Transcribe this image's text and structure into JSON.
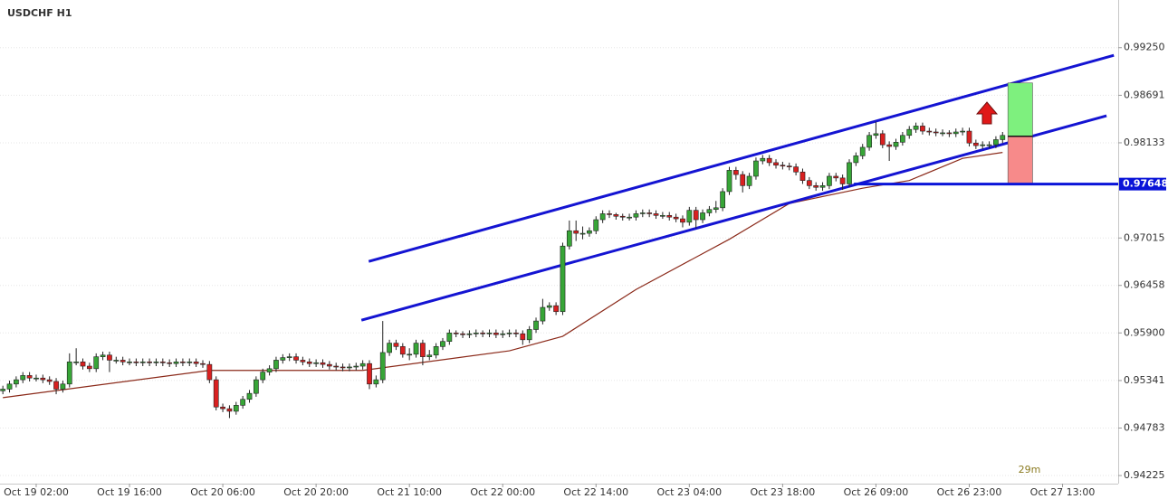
{
  "chart_data": {
    "type": "candlestick",
    "title": "USDCHF H1",
    "categories": [
      null,
      null,
      null,
      null,
      null,
      "Oct 19 02:00",
      null,
      null,
      null,
      null,
      null,
      null,
      null,
      null,
      null,
      null,
      null,
      null,
      null,
      "Oct 19 16:00",
      null,
      null,
      null,
      null,
      null,
      null,
      null,
      null,
      null,
      null,
      null,
      null,
      null,
      "Oct 20 06:00",
      null,
      null,
      null,
      null,
      null,
      null,
      null,
      null,
      null,
      null,
      null,
      null,
      null,
      "Oct 20 20:00",
      null,
      null,
      null,
      null,
      null,
      null,
      null,
      null,
      null,
      null,
      null,
      null,
      null,
      "Oct 21 10:00",
      null,
      null,
      null,
      null,
      null,
      null,
      null,
      null,
      null,
      null,
      null,
      null,
      null,
      "Oct 22 00:00",
      null,
      null,
      null,
      null,
      null,
      null,
      null,
      null,
      null,
      null,
      null,
      null,
      null,
      "Oct 22 14:00",
      null,
      null,
      null,
      null,
      null,
      null,
      null,
      null,
      null,
      null,
      null,
      null,
      null,
      "Oct 23 04:00",
      null,
      null,
      null,
      null,
      null,
      null,
      null,
      null,
      null,
      null,
      null,
      null,
      null,
      "Oct 23 18:00",
      null,
      null,
      null,
      null,
      null,
      null,
      null,
      null,
      null,
      null,
      null,
      null,
      null,
      "Oct 26 09:00",
      null,
      null,
      null,
      null,
      null,
      null,
      null,
      null,
      null,
      null,
      null,
      null,
      null,
      "Oct 26 23:00",
      null,
      null,
      null,
      null,
      null,
      null,
      null,
      null,
      null,
      null,
      null,
      null,
      null,
      "Oct 27 13:00"
    ],
    "open": [
      0.9522,
      0.9524,
      0.953,
      0.9535,
      0.954,
      0.9537,
      0.9537,
      0.9535,
      0.9533,
      0.9524,
      0.953,
      0.9556,
      0.9556,
      0.9551,
      0.9548,
      0.9562,
      0.9564,
      0.9558,
      0.9558,
      0.9556,
      0.9556,
      0.9555,
      0.9556,
      0.9555,
      0.9556,
      0.9555,
      0.9554,
      0.9556,
      0.9555,
      0.9556,
      0.9554,
      0.9553,
      0.9535,
      0.9503,
      0.9501,
      0.9498,
      0.9505,
      0.9512,
      0.9519,
      0.9535,
      0.9544,
      0.9548,
      0.9558,
      0.9561,
      0.9562,
      0.9558,
      0.9556,
      0.9554,
      0.9555,
      0.9553,
      0.9551,
      0.955,
      0.9549,
      0.955,
      0.9551,
      0.9554,
      0.953,
      0.9535,
      0.9567,
      0.9578,
      0.9574,
      0.9565,
      0.9565,
      0.9578,
      0.9562,
      0.9564,
      0.9574,
      0.958,
      0.959,
      0.9589,
      0.9588,
      0.9589,
      0.959,
      0.9589,
      0.959,
      0.9588,
      0.9589,
      0.959,
      0.9589,
      0.9582,
      0.9594,
      0.9604,
      0.962,
      0.9622,
      0.9615,
      0.9692,
      0.971,
      0.9707,
      0.9707,
      0.971,
      0.9723,
      0.973,
      0.9729,
      0.9727,
      0.9726,
      0.9726,
      0.973,
      0.9731,
      0.973,
      0.9728,
      0.9728,
      0.9726,
      0.9724,
      0.972,
      0.9734,
      0.9723,
      0.9731,
      0.9735,
      0.9737,
      0.9756,
      0.9781,
      0.9776,
      0.9763,
      0.9774,
      0.9792,
      0.9795,
      0.979,
      0.9787,
      0.9786,
      0.9785,
      0.9779,
      0.9769,
      0.9763,
      0.9761,
      0.9763,
      0.9774,
      0.9772,
      0.9765,
      0.979,
      0.9798,
      0.9808,
      0.9822,
      0.9824,
      0.9811,
      0.9809,
      0.9814,
      0.9822,
      0.9829,
      0.9833,
      0.9827,
      0.9826,
      0.9825,
      0.9825,
      0.9824,
      0.9826,
      0.9827,
      0.9813,
      0.981,
      0.9811,
      0.9811,
      0.9817,
      null,
      null,
      null,
      null,
      null,
      null,
      null,
      null,
      null
    ],
    "high": [
      0.9528,
      0.9534,
      0.9539,
      0.9544,
      0.9544,
      0.9541,
      0.9541,
      0.9539,
      0.9537,
      0.9534,
      0.9566,
      0.9572,
      0.956,
      0.9555,
      0.9566,
      0.9568,
      0.9568,
      0.9562,
      0.9562,
      0.956,
      0.956,
      0.956,
      0.956,
      0.956,
      0.956,
      0.9559,
      0.956,
      0.956,
      0.956,
      0.956,
      0.9558,
      0.9557,
      0.9539,
      0.9507,
      0.9505,
      0.9509,
      0.9516,
      0.9523,
      0.9539,
      0.9548,
      0.9552,
      0.9562,
      0.9565,
      0.9566,
      0.9566,
      0.9562,
      0.956,
      0.9559,
      0.9559,
      0.9557,
      0.9555,
      0.9554,
      0.9554,
      0.9555,
      0.9558,
      0.9558,
      0.954,
      0.9604,
      0.9582,
      0.9582,
      0.9578,
      0.9572,
      0.9582,
      0.9582,
      0.957,
      0.9578,
      0.9584,
      0.9594,
      0.9593,
      0.9592,
      0.9593,
      0.9594,
      0.9593,
      0.9594,
      0.9594,
      0.9593,
      0.9594,
      0.9594,
      0.9593,
      0.9598,
      0.9608,
      0.963,
      0.9626,
      0.9626,
      0.9696,
      0.9722,
      0.9722,
      0.9715,
      0.9714,
      0.9727,
      0.9734,
      0.9734,
      0.9731,
      0.973,
      0.973,
      0.9734,
      0.9735,
      0.9735,
      0.9734,
      0.9732,
      0.9732,
      0.973,
      0.9728,
      0.9738,
      0.9738,
      0.9735,
      0.9739,
      0.9745,
      0.976,
      0.9785,
      0.9785,
      0.978,
      0.9778,
      0.9796,
      0.9799,
      0.9799,
      0.9794,
      0.9791,
      0.979,
      0.9789,
      0.9783,
      0.9773,
      0.9767,
      0.9767,
      0.9778,
      0.9778,
      0.9776,
      0.9794,
      0.9802,
      0.9812,
      0.9826,
      0.9838,
      0.9828,
      0.9815,
      0.9818,
      0.9826,
      0.9833,
      0.9837,
      0.9837,
      0.9831,
      0.983,
      0.9829,
      0.9828,
      0.983,
      0.9831,
      0.9831,
      0.9817,
      0.9815,
      0.9815,
      0.9821,
      0.9826,
      null,
      null,
      null,
      null,
      null,
      null,
      null,
      null,
      null
    ],
    "low": [
      0.9518,
      0.952,
      0.9526,
      0.9531,
      0.9533,
      0.9533,
      0.9531,
      0.9529,
      0.9518,
      0.952,
      0.9526,
      0.9552,
      0.9547,
      0.9544,
      0.9544,
      0.9558,
      0.9544,
      0.9554,
      0.9552,
      0.9552,
      0.9551,
      0.9551,
      0.9551,
      0.9551,
      0.9551,
      0.955,
      0.955,
      0.9551,
      0.9551,
      0.955,
      0.9549,
      0.9531,
      0.9499,
      0.9497,
      0.949,
      0.9494,
      0.9501,
      0.9508,
      0.9515,
      0.9531,
      0.954,
      0.9544,
      0.9554,
      0.9557,
      0.9554,
      0.9552,
      0.955,
      0.955,
      0.9549,
      0.9547,
      0.9546,
      0.9545,
      0.9545,
      0.9546,
      0.9547,
      0.9524,
      0.9526,
      0.9531,
      0.9563,
      0.957,
      0.9561,
      0.9558,
      0.9561,
      0.9552,
      0.9558,
      0.956,
      0.957,
      0.9576,
      0.9585,
      0.9584,
      0.9584,
      0.9585,
      0.9585,
      0.9585,
      0.9584,
      0.9584,
      0.9585,
      0.9585,
      0.9576,
      0.9578,
      0.959,
      0.96,
      0.9616,
      0.9611,
      0.9611,
      0.9688,
      0.9698,
      0.97,
      0.9703,
      0.9706,
      0.9719,
      0.9725,
      0.9723,
      0.9722,
      0.9722,
      0.9722,
      0.9726,
      0.9726,
      0.9724,
      0.9724,
      0.9722,
      0.972,
      0.9714,
      0.9716,
      0.9713,
      0.9719,
      0.9727,
      0.9731,
      0.9733,
      0.9752,
      0.977,
      0.9755,
      0.9759,
      0.977,
      0.9788,
      0.9786,
      0.9783,
      0.9782,
      0.9781,
      0.9775,
      0.9765,
      0.9759,
      0.9757,
      0.9757,
      0.9759,
      0.9768,
      0.9758,
      0.9761,
      0.9786,
      0.9794,
      0.9804,
      0.9818,
      0.9807,
      0.9792,
      0.9805,
      0.981,
      0.9818,
      0.9825,
      0.9823,
      0.9822,
      0.9821,
      0.9821,
      0.982,
      0.982,
      0.9822,
      0.9809,
      0.9806,
      0.9806,
      0.9807,
      0.9807,
      0.9813,
      null,
      null,
      null,
      null,
      null,
      null,
      null,
      null,
      null
    ],
    "close": [
      0.9524,
      0.953,
      0.9535,
      0.954,
      0.9537,
      0.9537,
      0.9535,
      0.9533,
      0.9524,
      0.953,
      0.9556,
      0.9556,
      0.9551,
      0.9548,
      0.9562,
      0.9564,
      0.9558,
      0.9558,
      0.9556,
      0.9556,
      0.9555,
      0.9556,
      0.9555,
      0.9556,
      0.9555,
      0.9554,
      0.9556,
      0.9555,
      0.9556,
      0.9554,
      0.9553,
      0.9535,
      0.9503,
      0.9501,
      0.9498,
      0.9505,
      0.9512,
      0.9519,
      0.9535,
      0.9544,
      0.9548,
      0.9558,
      0.9561,
      0.9562,
      0.9558,
      0.9556,
      0.9554,
      0.9555,
      0.9553,
      0.9551,
      0.955,
      0.9549,
      0.955,
      0.9551,
      0.9554,
      0.953,
      0.9535,
      0.9567,
      0.9578,
      0.9574,
      0.9565,
      0.9565,
      0.9578,
      0.9562,
      0.9564,
      0.9574,
      0.958,
      0.959,
      0.9589,
      0.9588,
      0.9589,
      0.959,
      0.9589,
      0.959,
      0.9588,
      0.9589,
      0.959,
      0.9589,
      0.9582,
      0.9594,
      0.9604,
      0.962,
      0.9622,
      0.9615,
      0.9692,
      0.971,
      0.9707,
      0.9707,
      0.971,
      0.9723,
      0.973,
      0.9729,
      0.9727,
      0.9726,
      0.9726,
      0.973,
      0.9731,
      0.973,
      0.9728,
      0.9728,
      0.9726,
      0.9724,
      0.972,
      0.9734,
      0.9723,
      0.9731,
      0.9735,
      0.9737,
      0.9756,
      0.9781,
      0.9776,
      0.9763,
      0.9774,
      0.9792,
      0.9795,
      0.979,
      0.9787,
      0.9786,
      0.9785,
      0.9779,
      0.9769,
      0.9763,
      0.9761,
      0.9763,
      0.9774,
      0.9772,
      0.9765,
      0.979,
      0.9798,
      0.9808,
      0.9822,
      0.9824,
      0.9811,
      0.9809,
      0.9814,
      0.9822,
      0.9829,
      0.9833,
      0.9827,
      0.9826,
      0.9825,
      0.9825,
      0.9824,
      0.9826,
      0.9827,
      0.9813,
      0.981,
      0.9811,
      0.9811,
      0.9817,
      0.9822,
      null,
      null,
      null,
      null,
      null,
      null,
      null,
      null,
      null
    ],
    "up_color": "#37a537",
    "down_color": "#d92020",
    "ma": {
      "color": "#8b2a1a",
      "x": [
        0,
        31,
        54,
        76,
        84,
        95,
        109,
        118,
        129,
        136,
        144,
        150
      ],
      "values": [
        0.9514,
        0.9546,
        0.9546,
        0.9569,
        0.9586,
        0.9641,
        0.97,
        0.9742,
        0.976,
        0.9769,
        0.9795,
        0.9802
      ]
    },
    "trendlines": [
      {
        "color": "#1414d2",
        "x": [
          54.9,
          166.7
        ],
        "values": [
          0.9674,
          0.9916
        ]
      },
      {
        "color": "#1414d2",
        "x": [
          53.8,
          165.6
        ],
        "values": [
          0.9605,
          0.9845
        ]
      }
    ],
    "price_line": {
      "color": "#0a14d8",
      "value": 0.97648,
      "label": "0.97648",
      "x_start": 127.7
    },
    "trade_box": {
      "x": [
        150.8,
        154.5
      ],
      "take_profit": 0.98836,
      "entry": 0.98209,
      "stop_loss": 0.97648
    },
    "countdown": "29m",
    "xlim": [
      -0.43,
      167.35
    ],
    "ylim": [
      0.9413,
      0.9981
    ],
    "yticks": [
      {
        "value": 0.9925,
        "label": "0.99250"
      },
      {
        "value": 0.98691,
        "label": "0.98691"
      },
      {
        "value": 0.98133,
        "label": "0.98133"
      },
      {
        "value": 0.97015,
        "label": "0.97015"
      },
      {
        "value": 0.96458,
        "label": "0.96458"
      },
      {
        "value": 0.959,
        "label": "0.95900"
      },
      {
        "value": 0.95341,
        "label": "0.95341"
      },
      {
        "value": 0.94783,
        "label": "0.94783"
      },
      {
        "value": 0.94225,
        "label": "0.94225"
      }
    ],
    "grid": true
  }
}
